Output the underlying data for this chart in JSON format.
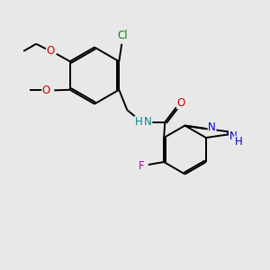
{
  "background_color": "#e8e8e8",
  "colors": {
    "black": "#000000",
    "red": "#cc0000",
    "green": "#008800",
    "teal": "#008888",
    "blue": "#0000cc",
    "magenta": "#bb00bb"
  },
  "layout": {
    "xlim": [
      0,
      10
    ],
    "ylim": [
      0,
      10
    ]
  }
}
